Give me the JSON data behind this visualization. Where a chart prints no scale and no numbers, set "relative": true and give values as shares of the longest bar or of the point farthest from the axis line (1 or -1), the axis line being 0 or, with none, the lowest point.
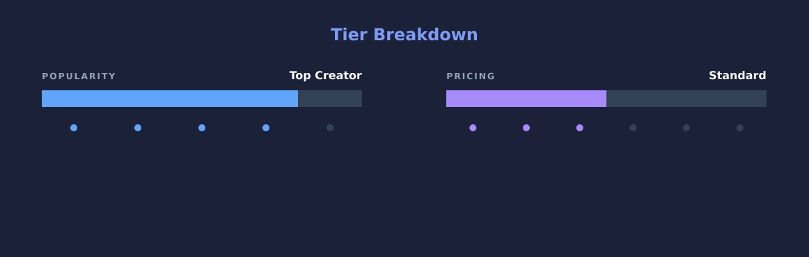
{
  "chart_data": [
    {
      "type": "other",
      "title": "Tier Breakdown",
      "color": "#7f9cf5"
    },
    {
      "type": "bar",
      "title": "POPULARITY",
      "annotations": [
        "Top Creator"
      ],
      "orientation": "horizontal",
      "stacked": true,
      "relative": true,
      "categories": [
        null
      ],
      "series": [
        {
          "color": "#60a5fa",
          "values": [
            0.8
          ]
        },
        {
          "color": "#334155",
          "values": [
            0.2
          ]
        }
      ]
    },
    {
      "type": "bar",
      "title": "PRICING",
      "annotations": [
        "Standard"
      ],
      "orientation": "horizontal",
      "stacked": true,
      "relative": true,
      "categories": [
        null
      ],
      "series": [
        {
          "color": "#a78bfa",
          "values": [
            0.5
          ]
        },
        {
          "color": "#334155",
          "values": [
            0.5
          ]
        }
      ]
    }
  ]
}
